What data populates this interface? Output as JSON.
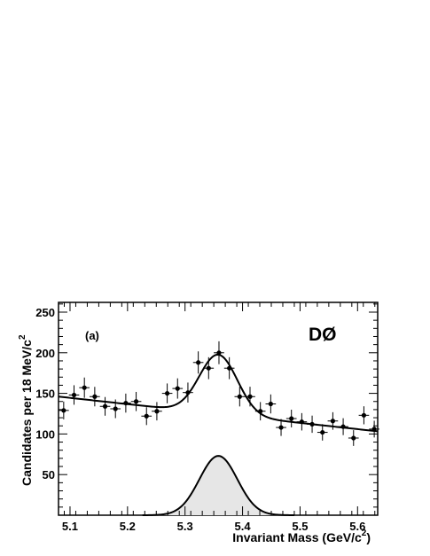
{
  "chart_data": {
    "type": "scatter",
    "panel_label": "(a)",
    "experiment_label": "DØ",
    "xlabel": "Invariant Mass  (GeV/c",
    "xlabel_sup": "2",
    "xlabel_tail": ")",
    "ylabel": "Candidates per  18 MeV/c",
    "ylabel_sup": "2",
    "xlim": [
      5.08,
      5.635
    ],
    "ylim": [
      0,
      262
    ],
    "x_ticks": [
      5.1,
      5.2,
      5.3,
      5.4,
      5.5,
      5.6
    ],
    "x_tick_labels": [
      "5.1",
      "5.2",
      "5.3",
      "5.4",
      "5.5",
      "5.6"
    ],
    "y_ticks": [
      50,
      100,
      150,
      200,
      250
    ],
    "y_tick_labels": [
      "50",
      "100",
      "150",
      "200",
      "250"
    ],
    "bin_half_width": 0.009,
    "series": [
      {
        "kind": "data_points",
        "x": [
          5.089,
          5.107,
          5.125,
          5.143,
          5.161,
          5.179,
          5.197,
          5.215,
          5.233,
          5.251,
          5.269,
          5.287,
          5.305,
          5.323,
          5.341,
          5.359,
          5.377,
          5.395,
          5.413,
          5.431,
          5.449,
          5.467,
          5.485,
          5.503,
          5.521,
          5.539,
          5.557,
          5.575,
          5.593,
          5.611,
          5.629
        ],
        "y": [
          129,
          148,
          157,
          146,
          134,
          131,
          138,
          140,
          122,
          128,
          150,
          156,
          151,
          188,
          181,
          200,
          181,
          146,
          146,
          128,
          137,
          108,
          119,
          115,
          112,
          102,
          116,
          109,
          95,
          123,
          106
        ],
        "err": [
          11,
          12,
          12.5,
          12,
          11.5,
          11.5,
          11.7,
          11.8,
          11,
          11.3,
          12.2,
          12.5,
          12.3,
          13.7,
          13.5,
          14.1,
          13.5,
          12.1,
          12.1,
          11.3,
          11.7,
          10.4,
          10.9,
          10.7,
          10.6,
          10.1,
          10.8,
          10.4,
          9.7,
          11.1,
          10.3
        ]
      },
      {
        "kind": "fit_curve",
        "background": {
          "a": 5.08,
          "y_at_a": 146,
          "slope_per_gev": -77
        },
        "signal": {
          "mean": 5.358,
          "sigma": 0.033,
          "amplitude": 73
        }
      },
      {
        "kind": "signal_component_filled",
        "mean": 5.358,
        "sigma": 0.033,
        "amplitude": 73,
        "fill": "#e6e6e6"
      }
    ],
    "colors": {
      "line": "#000000",
      "signal_fill": "#e6e6e6",
      "frame": "#000000"
    },
    "grid": false
  }
}
